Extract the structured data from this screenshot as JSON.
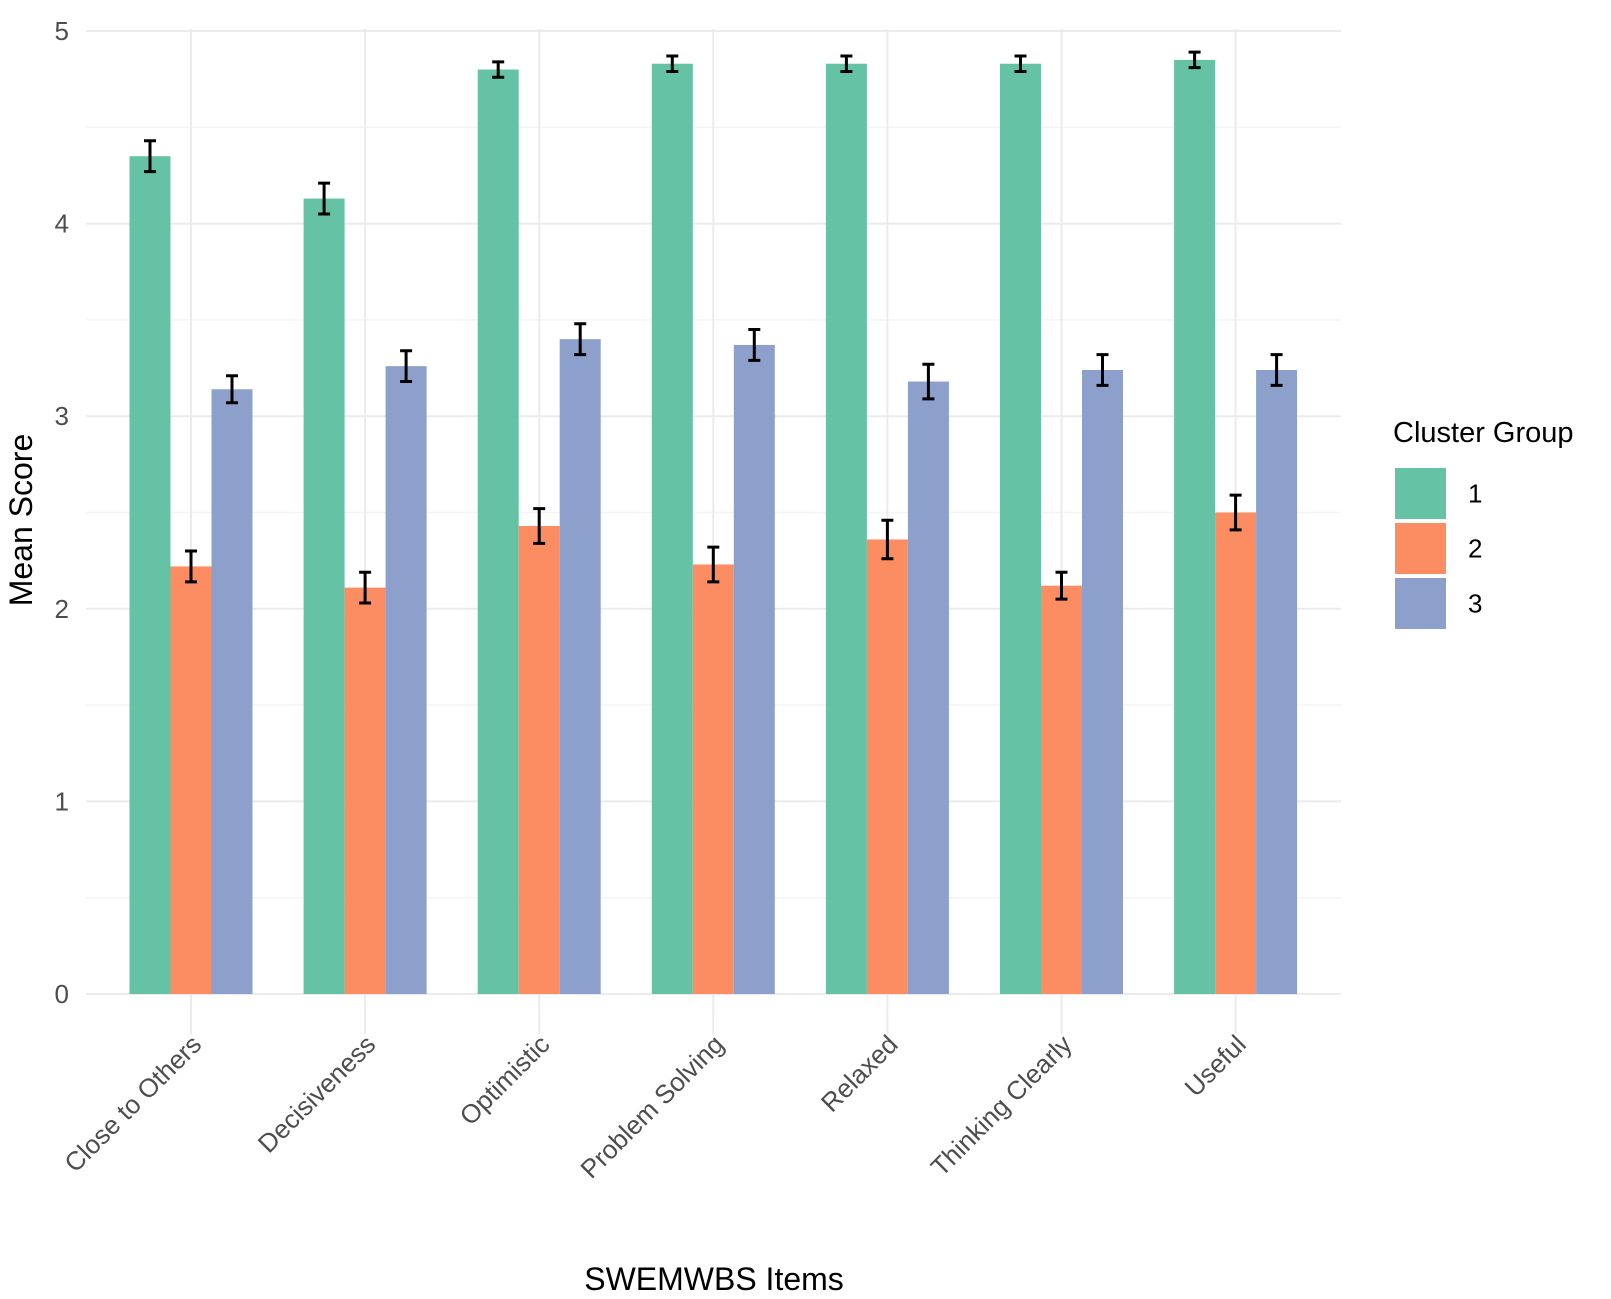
{
  "chart_data": {
    "type": "bar",
    "title": "",
    "xlabel": "SWEMWBS Items",
    "ylabel": "Mean Score",
    "ylim": [
      0,
      5
    ],
    "yticks": [
      0,
      1,
      2,
      3,
      4,
      5
    ],
    "categories": [
      "Close to Others",
      "Decisiveness",
      "Optimistic",
      "Problem Solving",
      "Relaxed",
      "Thinking Clearly",
      "Useful"
    ],
    "series": [
      {
        "name": "1",
        "color": "#66c2a5",
        "values": [
          4.35,
          4.13,
          4.8,
          4.83,
          4.83,
          4.83,
          4.85
        ],
        "errors": [
          0.08,
          0.08,
          0.04,
          0.04,
          0.04,
          0.04,
          0.04
        ]
      },
      {
        "name": "2",
        "color": "#fc8d62",
        "values": [
          2.22,
          2.11,
          2.43,
          2.23,
          2.36,
          2.12,
          2.5
        ],
        "errors": [
          0.08,
          0.08,
          0.09,
          0.09,
          0.1,
          0.07,
          0.09
        ]
      },
      {
        "name": "3",
        "color": "#8da0cb",
        "values": [
          3.14,
          3.26,
          3.4,
          3.37,
          3.18,
          3.24,
          3.24
        ],
        "errors": [
          0.07,
          0.08,
          0.08,
          0.08,
          0.09,
          0.08,
          0.08
        ]
      }
    ],
    "legend": {
      "title": "Cluster Group",
      "position": "right"
    },
    "grid": true
  }
}
